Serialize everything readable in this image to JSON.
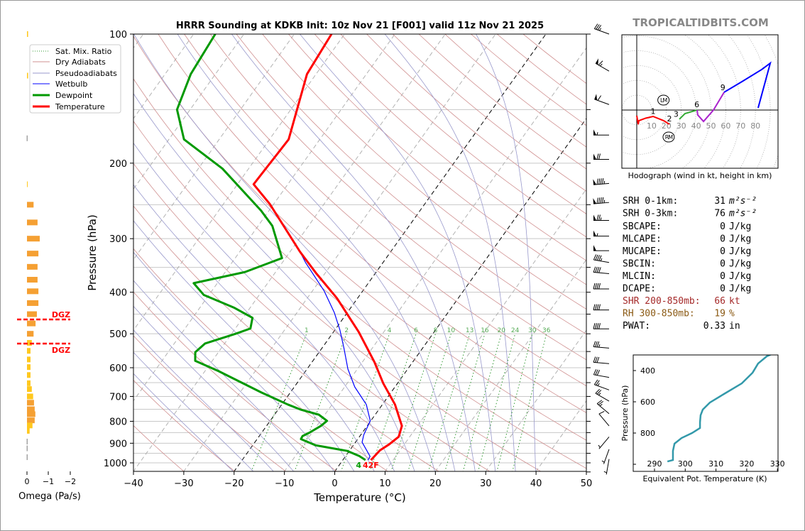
{
  "title": "HRRR Sounding at KDKB Init: 10z Nov 21 [F001] valid 11z Nov 21 2025",
  "watermark": "TROPICALTIDBITS.COM",
  "surface_labels": {
    "dewpoint": "4",
    "temperature": "42F"
  },
  "legend": [
    "Sat. Mix. Ratio",
    "Dry Adiabats",
    "Pseudoadiabats",
    "Wetbulb",
    "Dewpoint",
    "Temperature"
  ],
  "stats": [
    {
      "label": "SRH 0-1km:",
      "value": "31",
      "unit": "m²s⁻²",
      "color": "#000000"
    },
    {
      "label": "SRH 0-3km:",
      "value": "76",
      "unit": "m²s⁻²",
      "color": "#000000"
    },
    {
      "label": "SBCAPE:",
      "value": "0",
      "unit": "J/kg",
      "color": "#000000"
    },
    {
      "label": "MLCAPE:",
      "value": "0",
      "unit": "J/kg",
      "color": "#000000"
    },
    {
      "label": "MUCAPE:",
      "value": "0",
      "unit": "J/kg",
      "color": "#000000"
    },
    {
      "label": "SBCIN:",
      "value": "0",
      "unit": "J/kg",
      "color": "#000000"
    },
    {
      "label": "MLCIN:",
      "value": "0",
      "unit": "J/kg",
      "color": "#000000"
    },
    {
      "label": "DCAPE:",
      "value": "0",
      "unit": "J/kg",
      "color": "#000000"
    },
    {
      "label": "SHR 200-850mb:",
      "value": "66",
      "unit": "kt",
      "color": "#a52a2a"
    },
    {
      "label": "RH 300-850mb:",
      "value": "19",
      "unit": "%",
      "color": "#8b5a14"
    },
    {
      "label": "PWAT:",
      "value": "0.33",
      "unit": "in",
      "color": "#000000"
    }
  ],
  "chart_data": [
    {
      "type": "line",
      "name": "skewt",
      "title": "HRRR Sounding at KDKB Init: 10z Nov 21 [F001] valid 11z Nov 21 2025",
      "xlabel": "Temperature (°C)",
      "ylabel": "Pressure (hPa)",
      "xlim": [
        -40,
        50
      ],
      "ylim": [
        1050,
        100
      ],
      "xticks": [
        "−40",
        "−30",
        "−20",
        "−10",
        "0",
        "10",
        "20",
        "30",
        "40",
        "50"
      ],
      "yticks": [
        "100",
        "200",
        "300",
        "400",
        "500",
        "600",
        "700",
        "800",
        "900",
        "1000"
      ],
      "mixing_ratio_labels": [
        "1",
        "2",
        "4",
        "6",
        "8",
        "10",
        "13",
        "16",
        "20",
        "24",
        "30",
        "36"
      ],
      "colors": {
        "temperature": "#ff0000",
        "dewpoint": "#009900",
        "wetbulb": "#0000ff",
        "dry": "#d09090",
        "moist": "#9999cc",
        "mix": "#339933"
      },
      "series": [
        {
          "name": "Temperature",
          "points": [
            [
              100,
              -62.6
            ],
            [
              124,
              -61.8
            ],
            [
              176,
              -56.2
            ],
            [
              224,
              -56.8
            ],
            [
              249,
              -50.8
            ],
            [
              322,
              -38
            ],
            [
              361,
              -31.8
            ],
            [
              413,
              -24.1
            ],
            [
              495,
              -15
            ],
            [
              582,
              -7.6
            ],
            [
              653,
              -2.8
            ],
            [
              731,
              2.5
            ],
            [
              820,
              6.9
            ],
            [
              869,
              7.8
            ],
            [
              905,
              7.0
            ],
            [
              935,
              6.0
            ],
            [
              960,
              5.8
            ],
            [
              985,
              5.6
            ]
          ]
        },
        {
          "name": "Dewpoint",
          "points": [
            [
              100,
              -85.7
            ],
            [
              124,
              -84.9
            ],
            [
              150,
              -82.6
            ],
            [
              176,
              -77
            ],
            [
              206,
              -65.2
            ],
            [
              258,
              -51.6
            ],
            [
              280,
              -47.2
            ],
            [
              333,
              -40.7
            ],
            [
              359,
              -46.1
            ],
            [
              381,
              -54.7
            ],
            [
              406,
              -51
            ],
            [
              435,
              -43.1
            ],
            [
              459,
              -38.1
            ],
            [
              486,
              -37
            ],
            [
              500,
              -39.2
            ],
            [
              527,
              -43.9
            ],
            [
              552,
              -44.6
            ],
            [
              578,
              -43.4
            ],
            [
              611,
              -37.3
            ],
            [
              685,
              -25.8
            ],
            [
              731,
              -18.8
            ],
            [
              752,
              -15.4
            ],
            [
              772,
              -11.2
            ],
            [
              798,
              -8.7
            ],
            [
              820,
              -9.2
            ],
            [
              850,
              -10.5
            ],
            [
              866,
              -11.4
            ],
            [
              880,
              -11.3
            ],
            [
              910,
              -7.5
            ],
            [
              938,
              -0.4
            ],
            [
              964,
              2.7
            ],
            [
              985,
              4.5
            ]
          ]
        },
        {
          "name": "Wetbulb",
          "points": [
            [
              100,
              -62.6
            ],
            [
              124,
              -61.8
            ],
            [
              176,
              -56.2
            ],
            [
              224,
              -56.8
            ],
            [
              249,
              -50.8
            ],
            [
              322,
              -38
            ],
            [
              341,
              -35.4
            ],
            [
              397,
              -27.7
            ],
            [
              446,
              -22.6
            ],
            [
              490,
              -19
            ],
            [
              539,
              -15.7
            ],
            [
              604,
              -11.9
            ],
            [
              665,
              -8
            ],
            [
              731,
              -3.2
            ],
            [
              798,
              -0.1
            ],
            [
              861,
              0.6
            ],
            [
              895,
              1.3
            ],
            [
              966,
              4.9
            ],
            [
              985,
              5.0
            ]
          ]
        }
      ],
      "winds_kt": [
        [
          100,
          290,
          35
        ],
        [
          122,
          300,
          65
        ],
        [
          146,
          290,
          60
        ],
        [
          172,
          270,
          55
        ],
        [
          196,
          270,
          70
        ],
        [
          223,
          265,
          95
        ],
        [
          247,
          265,
          95
        ],
        [
          272,
          270,
          75
        ],
        [
          296,
          270,
          55
        ],
        [
          320,
          270,
          50
        ],
        [
          341,
          280,
          45
        ],
        [
          362,
          275,
          40
        ],
        [
          393,
          270,
          40
        ],
        [
          440,
          270,
          40
        ],
        [
          487,
          270,
          40
        ],
        [
          540,
          275,
          35
        ],
        [
          587,
          275,
          30
        ],
        [
          632,
          280,
          30
        ],
        [
          676,
          290,
          25
        ],
        [
          718,
          300,
          25
        ],
        [
          768,
          310,
          25
        ],
        [
          820,
          320,
          10
        ],
        [
          870,
          220,
          5
        ],
        [
          930,
          200,
          5
        ],
        [
          980,
          190,
          5
        ]
      ]
    },
    {
      "type": "bar",
      "name": "omega",
      "xlabel": "Omega (Pa/s)",
      "xticks": [
        "0",
        "−1",
        "−2"
      ],
      "dgz_label": "DGZ",
      "dgz_hpa": [
        463,
        527
      ],
      "values": [
        [
          100,
          -0.05
        ],
        [
          125,
          -0.05
        ],
        [
          175,
          0.01
        ],
        [
          224,
          -0.03
        ],
        [
          250,
          -0.3
        ],
        [
          275,
          -0.48
        ],
        [
          300,
          -0.58
        ],
        [
          325,
          -0.52
        ],
        [
          349,
          -0.48
        ],
        [
          374,
          -0.48
        ],
        [
          398,
          -0.52
        ],
        [
          424,
          -0.52
        ],
        [
          450,
          -0.45
        ],
        [
          473,
          -0.39
        ],
        [
          500,
          -0.3
        ],
        [
          525,
          -0.22
        ],
        [
          548,
          -0.16
        ],
        [
          574,
          -0.16
        ],
        [
          598,
          -0.16
        ],
        [
          624,
          -0.16
        ],
        [
          652,
          -0.16
        ],
        [
          673,
          -0.22
        ],
        [
          700,
          -0.28
        ],
        [
          724,
          -0.32
        ],
        [
          750,
          -0.35
        ],
        [
          770,
          -0.38
        ],
        [
          796,
          -0.35
        ],
        [
          818,
          -0.25
        ],
        [
          842,
          -0.12
        ],
        [
          892,
          0.01
        ],
        [
          925,
          0.01
        ],
        [
          970,
          0.01
        ]
      ]
    },
    {
      "type": "line",
      "name": "hodograph",
      "xlabel": "Hodograph (wind in kt, height in km)",
      "ring_labels": [
        "10",
        "20",
        "30",
        "40",
        "50",
        "60",
        "70",
        "80"
      ],
      "segments": [
        {
          "color": "#ff0000",
          "points": [
            [
              0,
              -3.8
            ],
            [
              1,
              -9.6
            ],
            [
              1.4,
              -7.2
            ],
            [
              6,
              -5.5
            ],
            [
              11,
              -4.3
            ],
            [
              18.2,
              -7.2
            ],
            [
              22,
              -9.6
            ]
          ]
        },
        {
          "color": "#33aa33",
          "points": [
            [
              28.7,
              -6.2
            ],
            [
              32.5,
              -2.4
            ],
            [
              37.3,
              -1
            ],
            [
              40.7,
              0
            ]
          ]
        },
        {
          "color": "#aa22cc",
          "points": [
            [
              40.7,
              0
            ],
            [
              41.1,
              -3.3
            ],
            [
              45,
              -7.7
            ],
            [
              51.7,
              0
            ],
            [
              58.9,
              12
            ]
          ]
        },
        {
          "color": "#0000ff",
          "points": [
            [
              58.9,
              12
            ],
            [
              70.8,
              19.1
            ],
            [
              84.2,
              27.3
            ],
            [
              90,
              31.6
            ],
            [
              81.8,
              1.4
            ]
          ]
        }
      ],
      "height_labels": [
        {
          "t": "1",
          "uv": [
            11,
            -4
          ]
        },
        {
          "t": "2",
          "uv": [
            22,
            -9
          ]
        },
        {
          "t": "3",
          "uv": [
            26.5,
            -6
          ]
        },
        {
          "t": "6",
          "uv": [
            40.5,
            0.5
          ]
        },
        {
          "t": "9",
          "uv": [
            58,
            12
          ]
        }
      ],
      "storm_motion": [
        {
          "t": "LM",
          "uv": [
            18,
            6.7
          ]
        },
        {
          "t": "RM",
          "uv": [
            21.5,
            -18.2
          ]
        }
      ]
    },
    {
      "type": "line",
      "name": "theta-e",
      "xlabel": "Equivalent Pot. Temperature (K)",
      "ylabel": "Pressure (hPa)",
      "xlim": [
        283,
        331
      ],
      "ylim": [
        1045,
        300
      ],
      "xticks": [
        "290",
        "300",
        "310",
        "320",
        "330"
      ],
      "yticks": [
        "400",
        "600",
        "800"
      ],
      "color": "#3399aa",
      "points": [
        [
          294.2,
          982
        ],
        [
          296,
          973
        ],
        [
          296,
          914
        ],
        [
          296.5,
          868
        ],
        [
          298.8,
          832
        ],
        [
          302.2,
          800
        ],
        [
          304.8,
          768
        ],
        [
          304.8,
          732
        ],
        [
          305,
          686
        ],
        [
          305.7,
          650
        ],
        [
          308,
          605
        ],
        [
          312.6,
          550
        ],
        [
          318.4,
          482
        ],
        [
          321.9,
          414
        ],
        [
          323.7,
          355
        ],
        [
          326.5,
          309
        ],
        [
          328,
          296
        ]
      ]
    }
  ]
}
